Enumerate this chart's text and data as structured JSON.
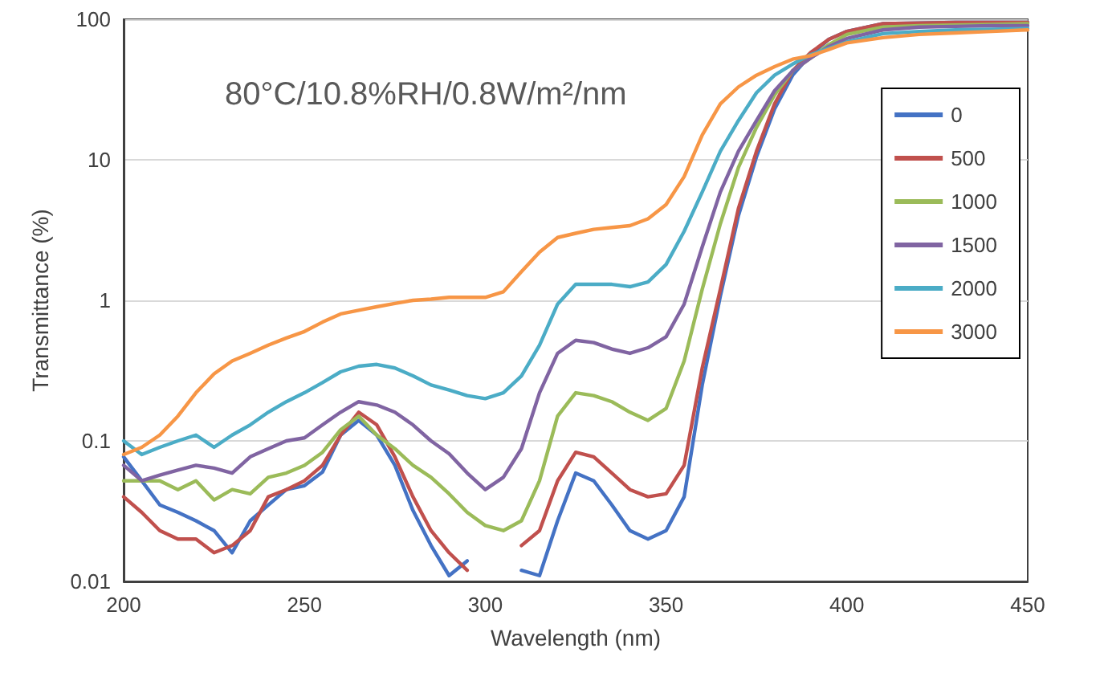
{
  "chart_data": {
    "type": "line",
    "title": "80°C/10.8%RH/0.8W/m²/nm",
    "xlabel": "Wavelength (nm)",
    "ylabel": "Transmittance (%)",
    "x": [
      200,
      205,
      210,
      215,
      220,
      225,
      230,
      235,
      240,
      245,
      250,
      255,
      260,
      265,
      270,
      275,
      280,
      285,
      290,
      295,
      300,
      305,
      310,
      315,
      320,
      325,
      330,
      335,
      340,
      345,
      350,
      355,
      360,
      365,
      370,
      375,
      380,
      385,
      390,
      395,
      400,
      410,
      420,
      430,
      440,
      450
    ],
    "series": [
      {
        "name": "0",
        "color": "#4472c4",
        "values": [
          0.077,
          0.052,
          0.035,
          0.031,
          0.027,
          0.023,
          0.016,
          0.027,
          0.035,
          0.045,
          0.048,
          0.06,
          0.11,
          0.14,
          0.11,
          0.067,
          0.032,
          0.018,
          0.011,
          0.014,
          null,
          null,
          0.012,
          0.011,
          0.027,
          0.059,
          0.052,
          0.035,
          0.023,
          0.02,
          0.023,
          0.04,
          0.25,
          1.07,
          4,
          10.5,
          23,
          40,
          56,
          72,
          82,
          93,
          94,
          95,
          95,
          95
        ]
      },
      {
        "name": "500",
        "color": "#c0504d",
        "values": [
          0.04,
          0.031,
          0.023,
          0.02,
          0.02,
          0.016,
          0.018,
          0.023,
          0.04,
          0.045,
          0.052,
          0.067,
          0.11,
          0.16,
          0.13,
          0.077,
          0.04,
          0.023,
          0.016,
          0.012,
          null,
          null,
          0.018,
          0.023,
          0.052,
          0.083,
          0.077,
          0.059,
          0.045,
          0.04,
          0.042,
          0.067,
          0.33,
          1.2,
          4.5,
          11.5,
          25,
          43,
          58,
          72,
          82,
          93,
          94,
          95,
          95,
          95
        ]
      },
      {
        "name": "1000",
        "color": "#9bbb59",
        "values": [
          0.052,
          0.052,
          0.052,
          0.045,
          0.052,
          0.038,
          0.045,
          0.042,
          0.055,
          0.059,
          0.067,
          0.083,
          0.12,
          0.15,
          0.11,
          0.088,
          0.067,
          0.055,
          0.042,
          0.031,
          0.025,
          0.023,
          0.027,
          0.052,
          0.15,
          0.22,
          0.21,
          0.19,
          0.16,
          0.14,
          0.17,
          0.37,
          1.2,
          3.5,
          8.8,
          17,
          29,
          43,
          53,
          66,
          78,
          88,
          90,
          91,
          92,
          93
        ]
      },
      {
        "name": "1500",
        "color": "#8064a2",
        "values": [
          0.067,
          0.052,
          0.057,
          0.062,
          0.067,
          0.064,
          0.059,
          0.077,
          0.088,
          0.1,
          0.105,
          0.13,
          0.16,
          0.19,
          0.18,
          0.16,
          0.13,
          0.1,
          0.081,
          0.059,
          0.045,
          0.055,
          0.088,
          0.22,
          0.42,
          0.52,
          0.5,
          0.45,
          0.42,
          0.46,
          0.55,
          0.94,
          2.4,
          5.9,
          11.5,
          19,
          31,
          43,
          53,
          64,
          73,
          84,
          88,
          89,
          90,
          90
        ]
      },
      {
        "name": "2000",
        "color": "#4bacc6",
        "values": [
          0.1,
          0.08,
          0.09,
          0.1,
          0.11,
          0.09,
          0.11,
          0.13,
          0.16,
          0.19,
          0.22,
          0.26,
          0.31,
          0.34,
          0.35,
          0.33,
          0.29,
          0.25,
          0.23,
          0.21,
          0.2,
          0.22,
          0.29,
          0.48,
          0.94,
          1.3,
          1.3,
          1.3,
          1.25,
          1.35,
          1.8,
          3.1,
          5.9,
          11.5,
          19,
          30,
          40,
          48,
          56,
          62,
          69,
          79,
          82,
          84,
          85,
          86
        ]
      },
      {
        "name": "3000",
        "color": "#f79646",
        "values": [
          0.08,
          0.09,
          0.11,
          0.15,
          0.22,
          0.3,
          0.37,
          0.42,
          0.48,
          0.54,
          0.6,
          0.7,
          0.8,
          0.85,
          0.9,
          0.95,
          1.0,
          1.02,
          1.05,
          1.05,
          1.05,
          1.15,
          1.6,
          2.2,
          2.8,
          3.0,
          3.2,
          3.3,
          3.4,
          3.8,
          4.8,
          7.6,
          15,
          25,
          33,
          40,
          46,
          52,
          55,
          61,
          68,
          74,
          78,
          80,
          82,
          84
        ]
      }
    ],
    "xlim": [
      200,
      450
    ],
    "xticks": [
      200,
      250,
      300,
      350,
      400,
      450
    ],
    "ylim": [
      0.01,
      100
    ],
    "yticks": [
      0.01,
      0.1,
      1,
      10,
      100
    ],
    "log": "y",
    "grid": "y",
    "legend": "right",
    "marker": "none",
    "line_style": "solid"
  }
}
